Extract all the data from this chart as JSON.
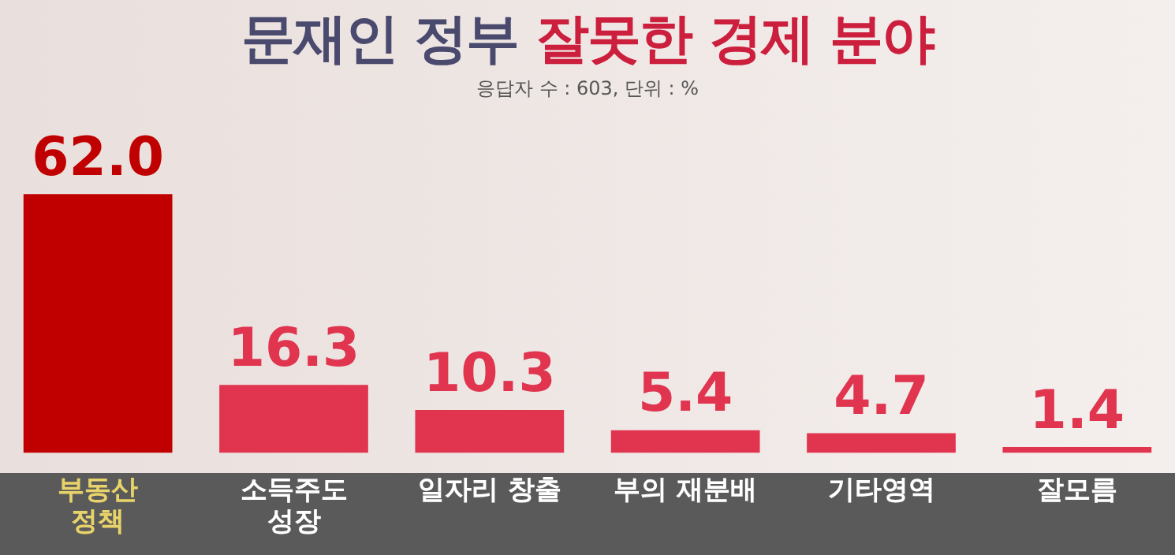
{
  "chart_data": {
    "type": "bar",
    "title": "문재인 정부 잘못한 경제 분야",
    "subtitle": "응답자 수 : 603, 단위 : %",
    "categories": [
      "부동산\n정책",
      "소득주도\n성장",
      "일자리 창출",
      "부의 재분배",
      "기타영역",
      "잘모름"
    ],
    "values": [
      62.0,
      16.3,
      10.3,
      5.4,
      4.7,
      1.4
    ],
    "value_labels": [
      "62.0",
      "16.3",
      "10.3",
      "5.4",
      "4.7",
      "1.4"
    ],
    "colors": [
      "#c00000",
      "#e0344f",
      "#e0344f",
      "#e0344f",
      "#e0344f",
      "#e0344f"
    ]
  }
}
